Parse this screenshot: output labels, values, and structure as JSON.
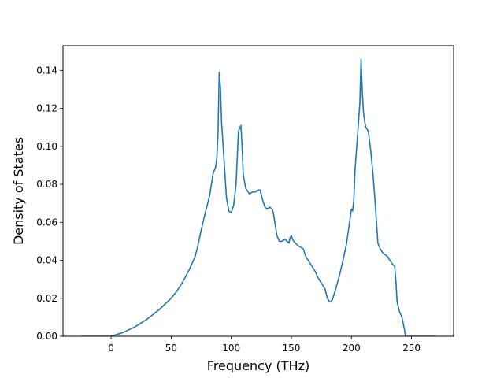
{
  "chart_data": {
    "type": "line",
    "xlabel": "Frequency (THz)",
    "ylabel": "Density of States",
    "xlim": [
      -40,
      285
    ],
    "ylim": [
      0.0,
      0.153
    ],
    "x_ticks": [
      0,
      50,
      100,
      150,
      200,
      250
    ],
    "y_ticks": [
      0.0,
      0.02,
      0.04,
      0.06,
      0.08,
      0.1,
      0.12,
      0.14
    ],
    "x_tick_labels": [
      "0",
      "50",
      "100",
      "150",
      "200",
      "250"
    ],
    "y_tick_labels": [
      "0.00",
      "0.02",
      "0.04",
      "0.06",
      "0.08",
      "0.10",
      "0.12",
      "0.14"
    ],
    "grid": false,
    "line_color": "#1f77b4",
    "series": [
      {
        "x": [
          -25,
          0,
          10,
          20,
          30,
          40,
          50,
          55,
          60,
          65,
          70,
          72,
          75,
          78,
          80,
          82,
          85,
          87,
          88,
          89,
          90,
          91,
          92,
          94,
          96,
          98,
          100,
          102,
          104,
          106,
          108,
          109,
          110,
          112,
          115,
          118,
          120,
          122,
          124,
          126,
          128,
          130,
          132,
          134,
          135,
          136,
          138,
          140,
          142,
          145,
          148,
          149,
          150,
          151,
          152,
          155,
          160,
          162,
          165,
          168,
          170,
          172,
          175,
          178,
          180,
          182,
          184,
          185,
          187,
          190,
          193,
          196,
          198,
          200,
          201,
          202,
          203,
          205,
          207,
          208,
          209,
          210,
          211,
          212,
          214,
          216,
          218,
          220,
          222,
          224,
          226,
          230,
          234,
          236,
          237,
          238,
          240,
          242,
          244,
          245,
          246,
          250,
          260,
          270
        ],
        "y": [
          0.0,
          0.0,
          0.002,
          0.005,
          0.009,
          0.014,
          0.02,
          0.024,
          0.029,
          0.035,
          0.042,
          0.047,
          0.056,
          0.064,
          0.069,
          0.074,
          0.086,
          0.089,
          0.094,
          0.107,
          0.139,
          0.131,
          0.112,
          0.093,
          0.073,
          0.066,
          0.065,
          0.069,
          0.08,
          0.108,
          0.111,
          0.1,
          0.085,
          0.078,
          0.075,
          0.076,
          0.076,
          0.077,
          0.077,
          0.072,
          0.068,
          0.067,
          0.068,
          0.067,
          0.065,
          0.061,
          0.053,
          0.05,
          0.05,
          0.051,
          0.049,
          0.052,
          0.053,
          0.051,
          0.05,
          0.048,
          0.046,
          0.042,
          0.039,
          0.036,
          0.034,
          0.031,
          0.028,
          0.025,
          0.02,
          0.018,
          0.019,
          0.021,
          0.025,
          0.032,
          0.04,
          0.049,
          0.058,
          0.067,
          0.066,
          0.072,
          0.088,
          0.105,
          0.123,
          0.146,
          0.129,
          0.118,
          0.113,
          0.11,
          0.108,
          0.098,
          0.085,
          0.068,
          0.049,
          0.046,
          0.044,
          0.042,
          0.038,
          0.037,
          0.029,
          0.018,
          0.013,
          0.01,
          0.004,
          0.0,
          0.0,
          0.0,
          0.0,
          0.0
        ]
      }
    ]
  }
}
